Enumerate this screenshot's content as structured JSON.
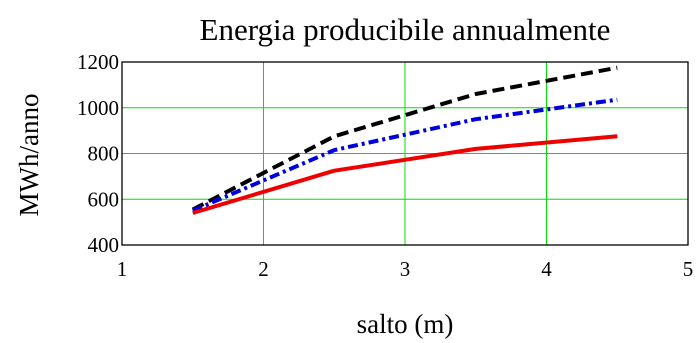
{
  "chart_data": {
    "type": "line",
    "title": "Energia producibile annualmente",
    "xlabel": "salto (m)",
    "ylabel": "MWh/anno",
    "xlim": [
      1,
      5
    ],
    "ylim": [
      400,
      1200
    ],
    "xticks": [
      1,
      2,
      3,
      4,
      5
    ],
    "yticks": [
      400,
      600,
      800,
      1000,
      1200
    ],
    "grid": true,
    "series": [
      {
        "color": "#000000",
        "style": "dashed",
        "x": [
          1.5,
          2.5,
          3.5,
          4.5
        ],
        "y": [
          555,
          875,
          1060,
          1175
        ]
      },
      {
        "color": "#0000dd",
        "style": "dash-dot",
        "x": [
          1.5,
          2.5,
          3.5,
          4.5
        ],
        "y": [
          550,
          815,
          950,
          1035
        ]
      },
      {
        "color": "#ee0000",
        "style": "solid",
        "x": [
          1.5,
          2.5,
          3.5,
          4.5
        ],
        "y": [
          540,
          725,
          820,
          875
        ]
      }
    ]
  }
}
